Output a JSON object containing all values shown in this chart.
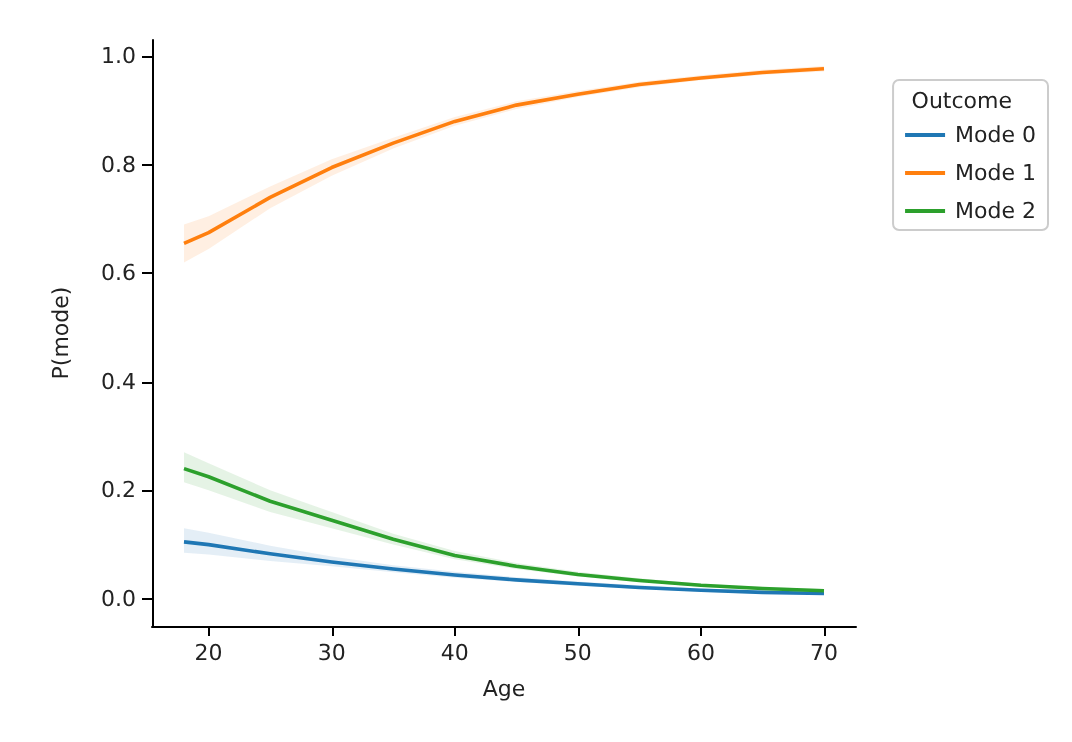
{
  "chart_data": {
    "type": "line",
    "xlabel": "Age",
    "ylabel": "P(mode)",
    "legend_title": "Outcome",
    "legend": "top right",
    "grid": false,
    "x": [
      18,
      20,
      25,
      30,
      35,
      40,
      45,
      50,
      55,
      60,
      65,
      70
    ],
    "xlim": [
      15.4,
      72.6
    ],
    "xticks": [
      20,
      30,
      40,
      50,
      60,
      70
    ],
    "ylim": [
      -0.05,
      1.03
    ],
    "yticks": [
      {
        "value": 0,
        "label": "0.0"
      },
      {
        "value": 0.2,
        "label": "0.2"
      },
      {
        "value": 0.4,
        "label": "0.4"
      },
      {
        "value": 0.6,
        "label": "0.6"
      },
      {
        "value": 0.8,
        "label": "0.8"
      },
      {
        "value": 1,
        "label": "1.0"
      }
    ],
    "series": [
      {
        "name": "Mode 0",
        "color": "#1f77b4",
        "values": [
          0.105,
          0.1,
          0.083,
          0.068,
          0.055,
          0.044,
          0.035,
          0.028,
          0.021,
          0.016,
          0.012,
          0.01
        ],
        "lower": [
          0.085,
          0.082,
          0.07,
          0.06,
          0.049,
          0.039,
          0.031,
          0.024,
          0.018,
          0.013,
          0.009,
          0.007
        ],
        "upper": [
          0.13,
          0.122,
          0.098,
          0.078,
          0.062,
          0.05,
          0.04,
          0.032,
          0.025,
          0.019,
          0.015,
          0.013
        ]
      },
      {
        "name": "Mode 1",
        "color": "#ff7f0e",
        "values": [
          0.655,
          0.675,
          0.74,
          0.795,
          0.84,
          0.88,
          0.91,
          0.93,
          0.948,
          0.96,
          0.97,
          0.977
        ],
        "lower": [
          0.62,
          0.645,
          0.72,
          0.78,
          0.83,
          0.872,
          0.903,
          0.925,
          0.943,
          0.956,
          0.966,
          0.972
        ],
        "upper": [
          0.69,
          0.705,
          0.76,
          0.81,
          0.85,
          0.888,
          0.917,
          0.936,
          0.953,
          0.965,
          0.975,
          0.982
        ]
      },
      {
        "name": "Mode 2",
        "color": "#2ca02c",
        "values": [
          0.24,
          0.225,
          0.18,
          0.145,
          0.11,
          0.08,
          0.06,
          0.045,
          0.034,
          0.025,
          0.019,
          0.015
        ],
        "lower": [
          0.215,
          0.2,
          0.16,
          0.13,
          0.1,
          0.073,
          0.055,
          0.041,
          0.031,
          0.022,
          0.016,
          0.012
        ],
        "upper": [
          0.27,
          0.25,
          0.2,
          0.16,
          0.12,
          0.088,
          0.066,
          0.05,
          0.038,
          0.028,
          0.022,
          0.018
        ]
      }
    ]
  }
}
